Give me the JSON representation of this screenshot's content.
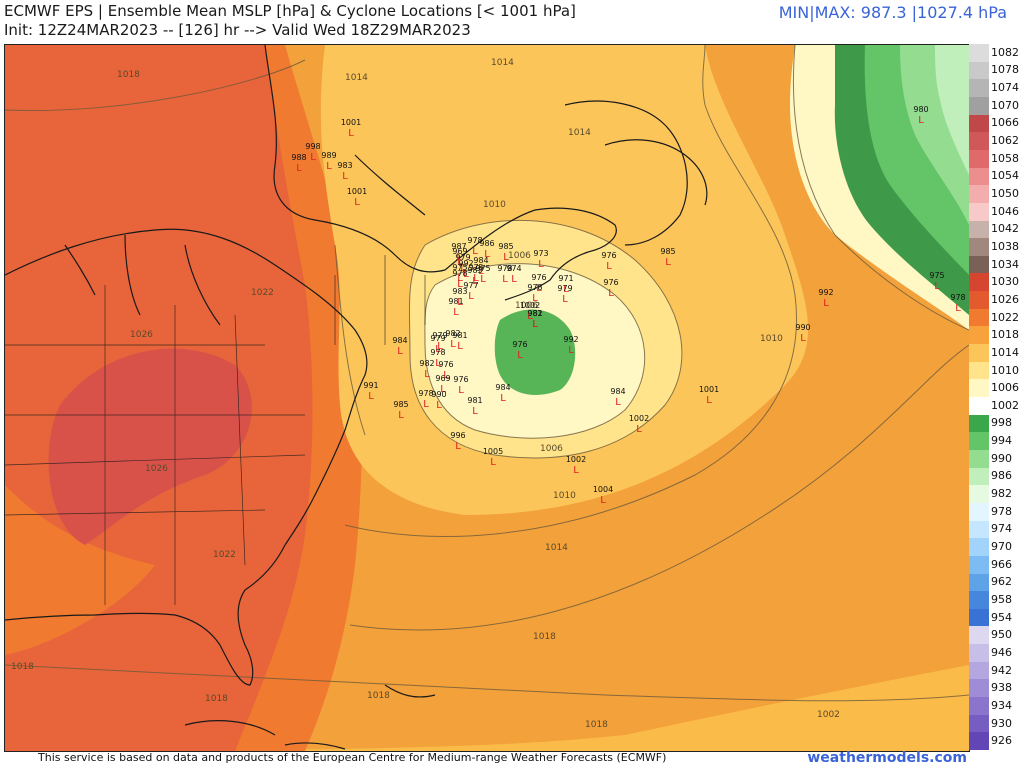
{
  "header": {
    "title": "ECMWF EPS | Ensemble Mean MSLP [hPa] & Cyclone Locations [< 1001 hPa]",
    "init": "Init: 12Z24MAR2023 -- [126] hr --> Valid Wed 18Z29MAR2023",
    "minmax": "MIN|MAX: 987.3 |1027.4 hPa"
  },
  "footer": {
    "credit": "This service is based on data and products of the European Centre for Medium-range Weather Forecasts (ECMWF)",
    "site": "weathermodels.com"
  },
  "legend": {
    "labels": [
      "1082",
      "1078",
      "1074",
      "1070",
      "1066",
      "1062",
      "1058",
      "1054",
      "1050",
      "1046",
      "1042",
      "1038",
      "1034",
      "1030",
      "1026",
      "1022",
      "1018",
      "1014",
      "1010",
      "1006",
      "1002",
      "998",
      "994",
      "990",
      "986",
      "982",
      "978",
      "974",
      "970",
      "966",
      "962",
      "958",
      "954",
      "950",
      "946",
      "942",
      "938",
      "934",
      "930",
      "926"
    ],
    "colors": [
      "#dcdcdc",
      "#c9c9c9",
      "#b5b5b5",
      "#a0a0a0",
      "#c04848",
      "#d05858",
      "#e06a6a",
      "#ec8e8e",
      "#f3adad",
      "#f7c9c9",
      "#c6b2aa",
      "#a0887f",
      "#7a6158",
      "#d5452f",
      "#e35a2f",
      "#f07a30",
      "#f7a23a",
      "#fcc55a",
      "#ffe48c",
      "#fff7c4",
      "#ffffff",
      "#3aa84a",
      "#64c468",
      "#94dc90",
      "#c0efbc",
      "#e6fae2",
      "#e3f6ff",
      "#c4e6ff",
      "#a2d4fb",
      "#7dbcf3",
      "#5ea2e8",
      "#4686dc",
      "#3872d4",
      "#ddd7f0",
      "#c8bfe8",
      "#b4a7e0",
      "#9e8cd6",
      "#8a74cc",
      "#765dc2",
      "#6346b6"
    ]
  },
  "contour_labels": [
    "1018",
    "1014",
    "1014",
    "1014",
    "1010",
    "1010",
    "1010",
    "1006",
    "1006",
    "1006",
    "1022",
    "1026",
    "1026",
    "1022",
    "1018",
    "1018",
    "1018",
    "1018",
    "1014",
    "1018",
    "1002"
  ],
  "cyclones": [
    {
      "p": "1001"
    },
    {
      "p": "998"
    },
    {
      "p": "988"
    },
    {
      "p": "989"
    },
    {
      "p": "983"
    },
    {
      "p": "1001"
    },
    {
      "p": "969"
    },
    {
      "p": "979"
    },
    {
      "p": "986"
    },
    {
      "p": "978"
    },
    {
      "p": "975"
    },
    {
      "p": "992"
    },
    {
      "p": "975"
    },
    {
      "p": "978"
    },
    {
      "p": "987"
    },
    {
      "p": "978"
    },
    {
      "p": "984"
    },
    {
      "p": "983"
    },
    {
      "p": "975"
    },
    {
      "p": "985"
    },
    {
      "p": "974"
    },
    {
      "p": "976"
    },
    {
      "p": "973"
    },
    {
      "p": "976"
    },
    {
      "p": "985"
    },
    {
      "p": "971"
    },
    {
      "p": "978"
    },
    {
      "p": "979"
    },
    {
      "p": "976"
    },
    {
      "p": "981"
    },
    {
      "p": "983"
    },
    {
      "p": "977"
    },
    {
      "p": "981"
    },
    {
      "p": "1002"
    },
    {
      "p": "982"
    },
    {
      "p": "981"
    },
    {
      "p": "984"
    },
    {
      "p": "979"
    },
    {
      "p": "982"
    },
    {
      "p": "976"
    },
    {
      "p": "992"
    },
    {
      "p": "979"
    },
    {
      "p": "978"
    },
    {
      "p": "982"
    },
    {
      "p": "976"
    },
    {
      "p": "969"
    },
    {
      "p": "976"
    },
    {
      "p": "984"
    },
    {
      "p": "991"
    },
    {
      "p": "985"
    },
    {
      "p": "978"
    },
    {
      "p": "990"
    },
    {
      "p": "981"
    },
    {
      "p": "984"
    },
    {
      "p": "1001"
    },
    {
      "p": "996"
    },
    {
      "p": "1005"
    },
    {
      "p": "1002"
    },
    {
      "p": "1002"
    },
    {
      "p": "1004"
    },
    {
      "p": "992"
    },
    {
      "p": "990"
    },
    {
      "p": "975"
    },
    {
      "p": "978"
    },
    {
      "p": "980"
    }
  ]
}
